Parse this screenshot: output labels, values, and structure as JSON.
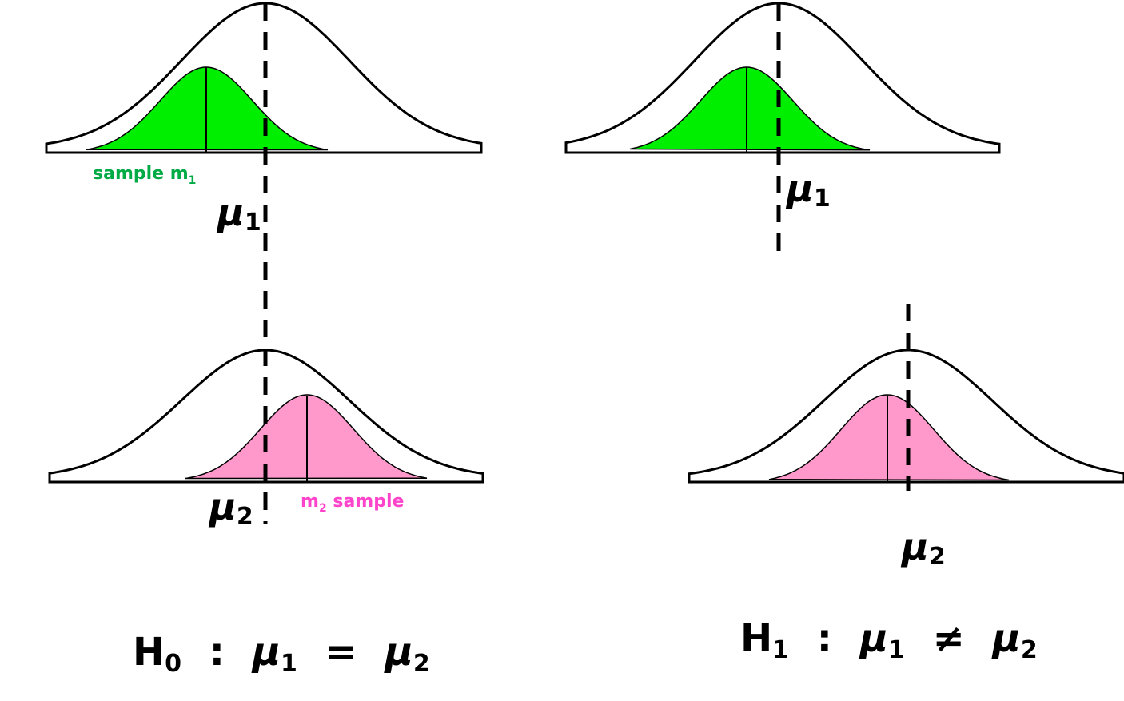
{
  "colors": {
    "sample1_fill": "#00ee00",
    "sample2_fill": "#ff99cc",
    "sample1_label": "#00aa44",
    "sample2_label": "#ff44cc",
    "line": "#000000"
  },
  "left": {
    "sample1_label": {
      "prefix": "sample m",
      "sub": "1"
    },
    "sample2_label": {
      "prefix": "m",
      "sub": "2",
      "suffix": " sample"
    },
    "mu1": {
      "sym": "μ",
      "sub": "1"
    },
    "mu2": {
      "sym": "μ",
      "sub": "2"
    },
    "hypothesis": {
      "h": "H",
      "hsub": "0",
      "colon": ":",
      "mu_a": "μ",
      "mu_a_sub": "1",
      "op": "=",
      "mu_b": "μ",
      "mu_b_sub": "2"
    }
  },
  "right": {
    "mu1": {
      "sym": "μ",
      "sub": "1"
    },
    "mu2": {
      "sym": "μ",
      "sub": "2"
    },
    "hypothesis": {
      "h": "H",
      "hsub": "1",
      "colon": ":",
      "mu_a": "μ",
      "mu_a_sub": "1",
      "op": "≠",
      "mu_b": "μ",
      "mu_b_sub": "2"
    }
  }
}
